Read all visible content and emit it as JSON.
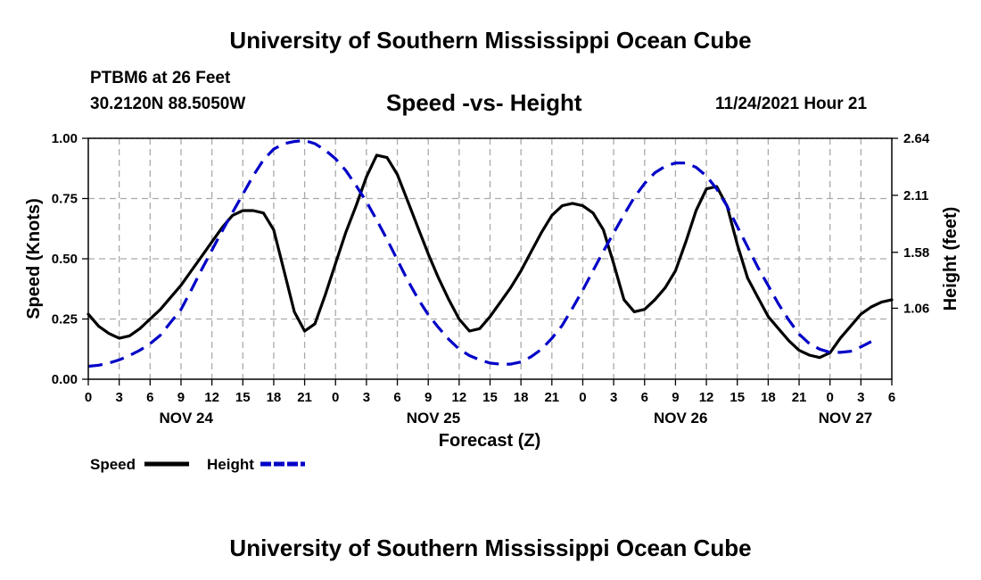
{
  "header": {
    "title": "University of Southern Mississippi Ocean Cube",
    "station": "PTBM6 at 26 Feet",
    "coordinates": "30.2120N  88.5050W",
    "timestamp": "11/24/2021 Hour 21"
  },
  "footer": {
    "title": "University of Southern Mississippi Ocean Cube"
  },
  "chart_data": {
    "type": "line",
    "title": "Speed -vs- Height",
    "xlabel": "Forecast (Z)",
    "ylabel": "Speed (Knots)",
    "y2label": "Height (feet)",
    "x_unit": "hours from 2021-11-24 00Z",
    "xlim": [
      0,
      78
    ],
    "ylim": [
      0,
      1.0
    ],
    "y2lim": [
      0.4,
      2.64
    ],
    "grid": true,
    "legend": "bottom-left",
    "x_ticks": [
      0,
      3,
      6,
      9,
      12,
      15,
      18,
      21,
      24,
      27,
      30,
      33,
      36,
      39,
      42,
      45,
      48,
      51,
      54,
      57,
      60,
      63,
      66,
      69,
      72,
      75,
      78
    ],
    "x_tick_labels": [
      "0",
      "3",
      "6",
      "9",
      "12",
      "15",
      "18",
      "21",
      "0",
      "3",
      "6",
      "9",
      "12",
      "15",
      "18",
      "21",
      "0",
      "3",
      "6",
      "9",
      "12",
      "15",
      "18",
      "21",
      "0",
      "3",
      "6"
    ],
    "y_ticks": [
      0,
      0.25,
      0.5,
      0.75,
      1.0
    ],
    "y_tick_labels": [
      "0.00",
      "0.25",
      "0.50",
      "0.75",
      "1.00"
    ],
    "y2_ticks": [
      1.06,
      1.58,
      2.11,
      2.64
    ],
    "y2_tick_labels": [
      "1.06",
      "1.58",
      "2.11",
      "2.64"
    ],
    "date_labels": [
      {
        "label": "NOV 24",
        "x": 9.5
      },
      {
        "label": "NOV 25",
        "x": 33.5
      },
      {
        "label": "NOV 26",
        "x": 57.5
      },
      {
        "label": "NOV 27",
        "x": 73.5
      }
    ],
    "series": [
      {
        "name": "Speed",
        "axis": "left",
        "color": "#000000",
        "style": "solid",
        "x": [
          0,
          1,
          2,
          3,
          4,
          5,
          6,
          7,
          8,
          9,
          10,
          11,
          12,
          13,
          14,
          15,
          16,
          17,
          18,
          19,
          20,
          21,
          22,
          23,
          24,
          25,
          26,
          27,
          28,
          29,
          30,
          31,
          32,
          33,
          34,
          35,
          36,
          37,
          38,
          39,
          40,
          41,
          42,
          43,
          44,
          45,
          46,
          47,
          48,
          49,
          50,
          51,
          52,
          53,
          54,
          55,
          56,
          57,
          58,
          59,
          60,
          61,
          62,
          63,
          64,
          65,
          66,
          67,
          68,
          69,
          70,
          71,
          72,
          73,
          74,
          75,
          76,
          77,
          78
        ],
        "values": [
          0.27,
          0.22,
          0.19,
          0.17,
          0.18,
          0.21,
          0.25,
          0.29,
          0.34,
          0.39,
          0.45,
          0.51,
          0.57,
          0.63,
          0.68,
          0.7,
          0.7,
          0.69,
          0.62,
          0.45,
          0.28,
          0.2,
          0.23,
          0.35,
          0.48,
          0.61,
          0.72,
          0.84,
          0.93,
          0.92,
          0.85,
          0.74,
          0.63,
          0.52,
          0.42,
          0.33,
          0.25,
          0.2,
          0.21,
          0.26,
          0.32,
          0.38,
          0.45,
          0.53,
          0.61,
          0.68,
          0.72,
          0.73,
          0.72,
          0.69,
          0.62,
          0.48,
          0.33,
          0.28,
          0.29,
          0.33,
          0.38,
          0.45,
          0.57,
          0.7,
          0.79,
          0.8,
          0.72,
          0.56,
          0.42,
          0.34,
          0.26,
          0.21,
          0.16,
          0.12,
          0.1,
          0.09,
          0.11,
          0.17,
          0.22,
          0.27,
          0.3,
          0.32,
          0.33
        ]
      },
      {
        "name": "Height",
        "axis": "right",
        "color": "#0000c8",
        "style": "dashed",
        "x": [
          0,
          1,
          2,
          3,
          4,
          5,
          6,
          7,
          8,
          9,
          10,
          11,
          12,
          13,
          14,
          15,
          16,
          17,
          18,
          19,
          20,
          21,
          22,
          23,
          24,
          25,
          26,
          27,
          28,
          29,
          30,
          31,
          32,
          33,
          34,
          35,
          36,
          37,
          38,
          39,
          40,
          41,
          42,
          43,
          44,
          45,
          46,
          47,
          48,
          49,
          50,
          51,
          52,
          53,
          54,
          55,
          56,
          57,
          58,
          59,
          60,
          61,
          62,
          63,
          64,
          65,
          66,
          67,
          68,
          69,
          70,
          71,
          72,
          73,
          74,
          75,
          76
        ],
        "values": [
          0.52,
          0.53,
          0.55,
          0.58,
          0.62,
          0.67,
          0.73,
          0.81,
          0.93,
          1.05,
          1.23,
          1.42,
          1.6,
          1.78,
          1.95,
          2.12,
          2.29,
          2.44,
          2.54,
          2.59,
          2.61,
          2.62,
          2.59,
          2.53,
          2.45,
          2.34,
          2.2,
          2.05,
          1.88,
          1.7,
          1.51,
          1.32,
          1.15,
          1.0,
          0.88,
          0.77,
          0.68,
          0.62,
          0.58,
          0.55,
          0.54,
          0.54,
          0.56,
          0.61,
          0.68,
          0.78,
          0.9,
          1.06,
          1.23,
          1.41,
          1.59,
          1.76,
          1.93,
          2.09,
          2.22,
          2.32,
          2.38,
          2.41,
          2.41,
          2.37,
          2.29,
          2.17,
          2.01,
          1.82,
          1.63,
          1.44,
          1.27,
          1.1,
          0.95,
          0.82,
          0.73,
          0.68,
          0.65,
          0.65,
          0.66,
          0.7,
          0.75
        ]
      }
    ]
  }
}
